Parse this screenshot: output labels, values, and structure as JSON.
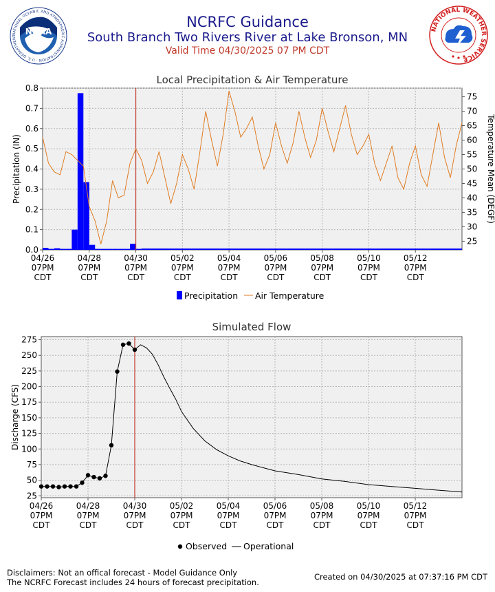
{
  "header": {
    "title": "NCRFC Guidance",
    "subtitle": "South Branch Two Rivers River at Lake Bronson, MN",
    "valid_time": "Valid Time 04/30/2025 07 PM CDT"
  },
  "logos": {
    "noaa": "NOAA",
    "noaa_ring": "NATIONAL OCEANIC AND ATMOSPHERIC ADMINISTRATION · U.S. DEPARTMENT OF COMMERCE",
    "nws_ring": "NATIONAL WEATHER SERVICE"
  },
  "colors": {
    "precip": "#0000ff",
    "temp": "#e07b20",
    "flow": "#000000",
    "valid_line": "#c0392b",
    "plot_bg": "#f0f0f0",
    "title_text": "#1a1a8c"
  },
  "footer": {
    "disclaimer1": "Disclaimers: Not an offical forecast - Model Guidance Only",
    "disclaimer2": "The NCRFC Forecast includes 24 hours of forecast precipitation.",
    "created": "Created on 04/30/2025 at 07:37:16 PM CDT"
  },
  "chart_data": [
    {
      "type": "bar",
      "title": "Local Precipitation & Air Temperature",
      "ylabel": "Precipitation (IN)",
      "y2label": "Temperature Mean (DEGF)",
      "ylim": [
        0,
        0.8
      ],
      "y2lim": [
        22,
        78
      ],
      "yticks": [
        "0.0",
        "0.1",
        "0.2",
        "0.3",
        "0.4",
        "0.5",
        "0.6",
        "0.7",
        "0.8"
      ],
      "y2ticks": [
        "25",
        "30",
        "35",
        "40",
        "45",
        "50",
        "55",
        "60",
        "65",
        "70",
        "75"
      ],
      "xlim": [
        0,
        18
      ],
      "valid_x": 4,
      "grid": true,
      "legend_position": "bottom",
      "x_tick_labels": [
        {
          "x": 0,
          "date": "04/26",
          "time": "07PM",
          "tz": "CDT"
        },
        {
          "x": 2,
          "date": "04/28",
          "time": "07PM",
          "tz": "CDT"
        },
        {
          "x": 4,
          "date": "04/30",
          "time": "07PM",
          "tz": "CDT"
        },
        {
          "x": 6,
          "date": "05/02",
          "time": "07PM",
          "tz": "CDT"
        },
        {
          "x": 8,
          "date": "05/04",
          "time": "07PM",
          "tz": "CDT"
        },
        {
          "x": 10,
          "date": "05/06",
          "time": "07PM",
          "tz": "CDT"
        },
        {
          "x": 12,
          "date": "05/08",
          "time": "07PM",
          "tz": "CDT"
        },
        {
          "x": 14,
          "date": "05/10",
          "time": "07PM",
          "tz": "CDT"
        },
        {
          "x": 16,
          "date": "05/12",
          "time": "07PM",
          "tz": "CDT"
        }
      ],
      "series": [
        {
          "name": "Precipitation",
          "kind": "bar",
          "bar_width": 0.25,
          "points": [
            [
              0.0,
              0.01
            ],
            [
              0.25,
              0.005
            ],
            [
              0.5,
              0.008
            ],
            [
              0.75,
              0.005
            ],
            [
              1.0,
              0.005
            ],
            [
              1.25,
              0.1
            ],
            [
              1.5,
              0.775
            ],
            [
              1.75,
              0.335
            ],
            [
              2.0,
              0.025
            ],
            [
              2.25,
              0.005
            ],
            [
              2.5,
              0.005
            ],
            [
              2.75,
              0.005
            ],
            [
              3.0,
              0.005
            ],
            [
              3.25,
              0.005
            ],
            [
              3.5,
              0.005
            ],
            [
              3.75,
              0.03
            ],
            [
              4.0,
              0.005
            ]
          ],
          "forecast_baseline": 0.005
        },
        {
          "name": "Air Temperature",
          "kind": "line",
          "points": [
            [
              0.0,
              61
            ],
            [
              0.25,
              52
            ],
            [
              0.5,
              49
            ],
            [
              0.75,
              48
            ],
            [
              1.0,
              56
            ],
            [
              1.25,
              55
            ],
            [
              1.5,
              53
            ],
            [
              1.75,
              51
            ],
            [
              2.0,
              37
            ],
            [
              2.25,
              32
            ],
            [
              2.5,
              24
            ],
            [
              2.75,
              32
            ],
            [
              3.0,
              46
            ],
            [
              3.25,
              40
            ],
            [
              3.5,
              41
            ],
            [
              3.75,
              52
            ],
            [
              4.0,
              57
            ],
            [
              4.25,
              53
            ],
            [
              4.5,
              45
            ],
            [
              4.75,
              49
            ],
            [
              5.0,
              56
            ],
            [
              5.25,
              47
            ],
            [
              5.5,
              38
            ],
            [
              5.75,
              45
            ],
            [
              6.0,
              55
            ],
            [
              6.25,
              50
            ],
            [
              6.5,
              43
            ],
            [
              6.75,
              56
            ],
            [
              7.0,
              70
            ],
            [
              7.25,
              60
            ],
            [
              7.5,
              51
            ],
            [
              7.75,
              62
            ],
            [
              8.0,
              77
            ],
            [
              8.25,
              70
            ],
            [
              8.5,
              61
            ],
            [
              8.75,
              64
            ],
            [
              9.0,
              68
            ],
            [
              9.25,
              58
            ],
            [
              9.5,
              50
            ],
            [
              9.75,
              55
            ],
            [
              10.0,
              66
            ],
            [
              10.25,
              58
            ],
            [
              10.5,
              52
            ],
            [
              10.75,
              59
            ],
            [
              11.0,
              70
            ],
            [
              11.25,
              61
            ],
            [
              11.5,
              54
            ],
            [
              11.75,
              60
            ],
            [
              12.0,
              71
            ],
            [
              12.25,
              63
            ],
            [
              12.5,
              56
            ],
            [
              12.75,
              64
            ],
            [
              13.0,
              72
            ],
            [
              13.25,
              62
            ],
            [
              13.5,
              55
            ],
            [
              13.75,
              58
            ],
            [
              14.0,
              62
            ],
            [
              14.25,
              52
            ],
            [
              14.5,
              46
            ],
            [
              14.75,
              52
            ],
            [
              15.0,
              58
            ],
            [
              15.25,
              47
            ],
            [
              15.5,
              43
            ],
            [
              15.75,
              52
            ],
            [
              16.0,
              58
            ],
            [
              16.25,
              48
            ],
            [
              16.5,
              44
            ],
            [
              16.75,
              55
            ],
            [
              17.0,
              66
            ],
            [
              17.25,
              54
            ],
            [
              17.5,
              47
            ],
            [
              17.75,
              58
            ],
            [
              18.0,
              66
            ]
          ]
        }
      ]
    },
    {
      "type": "line",
      "title": "Simulated Flow",
      "ylabel": "Discharge (CFS)",
      "ylim": [
        22,
        280
      ],
      "yticks": [
        "25",
        "50",
        "75",
        "100",
        "125",
        "150",
        "175",
        "200",
        "225",
        "250",
        "275"
      ],
      "xlim": [
        0,
        18
      ],
      "valid_x": 4,
      "grid": true,
      "legend_position": "bottom",
      "x_tick_labels": [
        {
          "x": 0,
          "date": "04/26",
          "time": "07PM",
          "tz": "CDT"
        },
        {
          "x": 2,
          "date": "04/28",
          "time": "07PM",
          "tz": "CDT"
        },
        {
          "x": 4,
          "date": "04/30",
          "time": "07PM",
          "tz": "CDT"
        },
        {
          "x": 6,
          "date": "05/02",
          "time": "07PM",
          "tz": "CDT"
        },
        {
          "x": 8,
          "date": "05/04",
          "time": "07PM",
          "tz": "CDT"
        },
        {
          "x": 10,
          "date": "05/06",
          "time": "07PM",
          "tz": "CDT"
        },
        {
          "x": 12,
          "date": "05/08",
          "time": "07PM",
          "tz": "CDT"
        },
        {
          "x": 14,
          "date": "05/10",
          "time": "07PM",
          "tz": "CDT"
        },
        {
          "x": 16,
          "date": "05/12",
          "time": "07PM",
          "tz": "CDT"
        }
      ],
      "series": [
        {
          "name": "Observed",
          "kind": "points",
          "points": [
            [
              0.0,
              40
            ],
            [
              0.25,
              40
            ],
            [
              0.5,
              40
            ],
            [
              0.75,
              39
            ],
            [
              1.0,
              40
            ],
            [
              1.25,
              40
            ],
            [
              1.5,
              40
            ],
            [
              1.75,
              46
            ],
            [
              2.0,
              58
            ],
            [
              2.25,
              55
            ],
            [
              2.5,
              53
            ],
            [
              2.75,
              57
            ],
            [
              3.0,
              106
            ],
            [
              3.25,
              224
            ],
            [
              3.5,
              267
            ],
            [
              3.75,
              269
            ],
            [
              4.0,
              259
            ]
          ]
        },
        {
          "name": "Operational",
          "kind": "line",
          "points": [
            [
              4.0,
              259
            ],
            [
              4.25,
              267
            ],
            [
              4.5,
              262
            ],
            [
              4.75,
              252
            ],
            [
              5.0,
              235
            ],
            [
              5.25,
              215
            ],
            [
              5.5,
              197
            ],
            [
              5.75,
              180
            ],
            [
              6.0,
              160
            ],
            [
              6.5,
              133
            ],
            [
              7.0,
              113
            ],
            [
              7.5,
              99
            ],
            [
              8.0,
              89
            ],
            [
              8.5,
              81
            ],
            [
              9.0,
              75
            ],
            [
              9.5,
              70
            ],
            [
              10.0,
              65
            ],
            [
              11.0,
              59
            ],
            [
              12.0,
              52
            ],
            [
              13.0,
              48
            ],
            [
              14.0,
              43
            ],
            [
              15.0,
              40
            ],
            [
              16.0,
              37
            ],
            [
              17.0,
              34
            ],
            [
              18.0,
              31
            ]
          ]
        }
      ]
    }
  ]
}
